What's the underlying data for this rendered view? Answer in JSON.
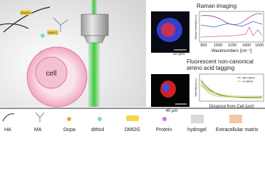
{
  "scene": {
    "cell": "cell",
    "tags": [
      "DMOG",
      "DMOG"
    ]
  },
  "raman": {
    "title": "Raman imaging",
    "scale_bar": "10 µm",
    "y_label": "Raman Intensity [a.u.]",
    "x_label": "Wavenumbers [cm⁻¹]",
    "x_ticks": [
      "800",
      "1000",
      "1200",
      "1400",
      "1600"
    ]
  },
  "fluorescence": {
    "title_lines": [
      "Fluorescent non-canonical",
      "amino acid tagging"
    ],
    "scale_bar": "40 µm",
    "y_label": "Intensity [a.u.]",
    "x_label": "Distance from Cell [µm]",
    "legend": [
      "with DMOG",
      "no DMOG"
    ]
  },
  "legend": [
    "HA",
    "MA",
    "Dopa",
    "dithiol",
    "DMOG",
    "Protein",
    "hydrogel",
    "Extracellular matrix"
  ]
}
